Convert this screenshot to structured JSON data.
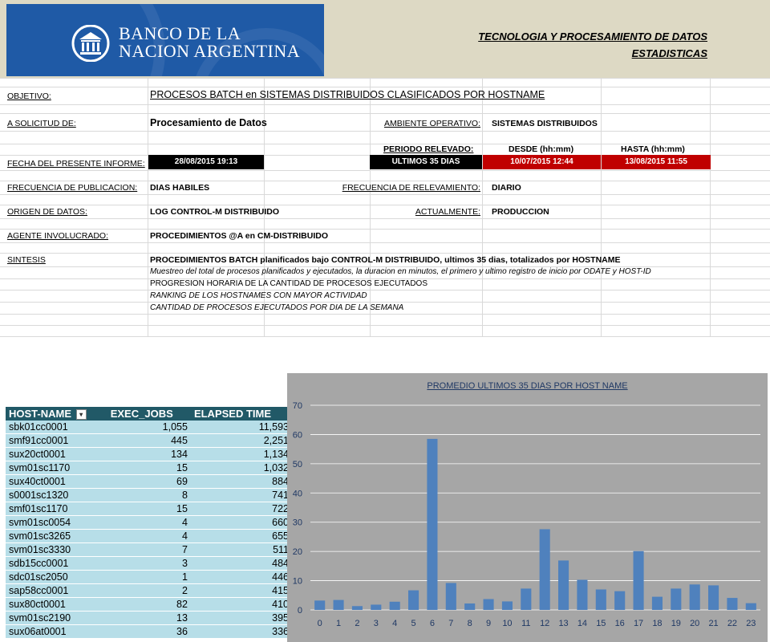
{
  "header": {
    "logo_line1": "BANCO DE LA",
    "logo_line2": "NACION ARGENTINA",
    "dept_title": "TECNOLOGIA Y PROCESAMIENTO DE DATOS",
    "dept_subtitle": "ESTADISTICAS"
  },
  "report": {
    "objetivo_label": "OBJETIVO:",
    "objetivo_value": "PROCESOS BATCH en SISTEMAS DISTRIBUIDOS CLASIFICADOS POR HOSTNAME",
    "solicitud_label": "A SOLICITUD DE:",
    "solicitud_value": "Procesamiento de Datos",
    "ambiente_label": "AMBIENTE OPERATIVO:",
    "ambiente_value": "SISTEMAS DISTRIBUIDOS",
    "periodo_label": "PERIODO RELEVADO:",
    "desde_label": "DESDE (hh:mm)",
    "hasta_label": "HASTA (hh:mm)",
    "fecha_label": "FECHA DEL PRESENTE INFORME:",
    "fecha_value": "28/08/2015 19:13",
    "periodo_value": "ULTIMOS 35 DIAS",
    "desde_value": "10/07/2015 12:44",
    "hasta_value": "13/08/2015 11:55",
    "frecuencia_pub_label": "FRECUENCIA DE PUBLICACION:",
    "frecuencia_pub_value": "DIAS HABILES",
    "frecuencia_rel_label": "FRECUENCIA DE RELEVAMIENTO:",
    "frecuencia_rel_value": "DIARIO",
    "origen_label": "ORIGEN DE DATOS:",
    "origen_value": "LOG CONTROL-M DISTRIBUIDO",
    "actualmente_label": "ACTUALMENTE:",
    "actualmente_value": "PRODUCCION",
    "agente_label": "AGENTE INVOLUCRADO:",
    "agente_value": "PROCEDIMIENTOS @A en CM-DISTRIBUIDO",
    "sintesis_label": "SINTESIS",
    "sintesis_value": "PROCEDIMIENTOS BATCH planificados bajo CONTROL-M DISTRIBUIDO, ultimos 35 dias, totalizados por HOSTNAME",
    "sintesis_line1": "Muestreo del total de procesos planificados y ejecutados, la duracion en minutos, el primero y ultimo registro de inicio por ODATE y HOST-ID",
    "sintesis_line2": "PROGRESION HORARIA DE LA CANTIDAD DE PROCESOS EJECUTADOS",
    "sintesis_line3": "RANKING DE LOS HOSTNAMES CON MAYOR ACTIVIDAD",
    "sintesis_line4": "CANTIDAD DE PROCESOS EJECUTADOS POR DIA DE LA SEMANA"
  },
  "colors": {
    "black_box": "#000000",
    "red_box": "#c00000",
    "table_header": "#215967",
    "table_row": "#b7dee8",
    "chart_bg": "#a6a6a6",
    "bar": "#4f81bd"
  },
  "table": {
    "headers": [
      "HOST-NAME",
      "EXEC_JOBS",
      "ELAPSED TIME"
    ],
    "filter_icon": "filter-sort-icon",
    "rows": [
      [
        "sbk01cc0001",
        "1,055",
        "11,593"
      ],
      [
        "smf91cc0001",
        "445",
        "2,251"
      ],
      [
        "sux20ct0001",
        "134",
        "1,134"
      ],
      [
        "svm01sc1170",
        "15",
        "1,032"
      ],
      [
        "sux40ct0001",
        "69",
        "884"
      ],
      [
        "s0001sc1320",
        "8",
        "741"
      ],
      [
        "smf01sc1170",
        "15",
        "722"
      ],
      [
        "svm01sc0054",
        "4",
        "660"
      ],
      [
        "svm01sc3265",
        "4",
        "655"
      ],
      [
        "svm01sc3330",
        "7",
        "511"
      ],
      [
        "sdb15cc0001",
        "3",
        "484"
      ],
      [
        "sdc01sc2050",
        "1",
        "446"
      ],
      [
        "sap58cc0001",
        "2",
        "415"
      ],
      [
        "sux80ct0001",
        "82",
        "410"
      ],
      [
        "svm01sc2190",
        "13",
        "395"
      ],
      [
        "sux06at0001",
        "36",
        "336"
      ]
    ]
  },
  "chart_data": {
    "type": "bar",
    "title": "PROMEDIO ULTIMOS 35 DIAS POR HOST NAME",
    "categories": [
      "0",
      "1",
      "2",
      "3",
      "4",
      "5",
      "6",
      "7",
      "8",
      "9",
      "10",
      "11",
      "12",
      "13",
      "14",
      "15",
      "16",
      "17",
      "18",
      "19",
      "20",
      "21",
      "22",
      "23"
    ],
    "values": [
      3.2,
      3.4,
      1.3,
      1.8,
      2.8,
      6.7,
      58.5,
      9.2,
      2.2,
      3.7,
      2.9,
      7.3,
      27.6,
      16.9,
      10.3,
      7.0,
      6.4,
      20.1,
      4.5,
      7.3,
      8.7,
      8.4,
      4.1,
      2.3
    ],
    "ylim": [
      0,
      70
    ],
    "yticks": [
      0,
      10,
      20,
      30,
      40,
      50,
      60,
      70
    ],
    "grid": true,
    "legend": "none"
  }
}
